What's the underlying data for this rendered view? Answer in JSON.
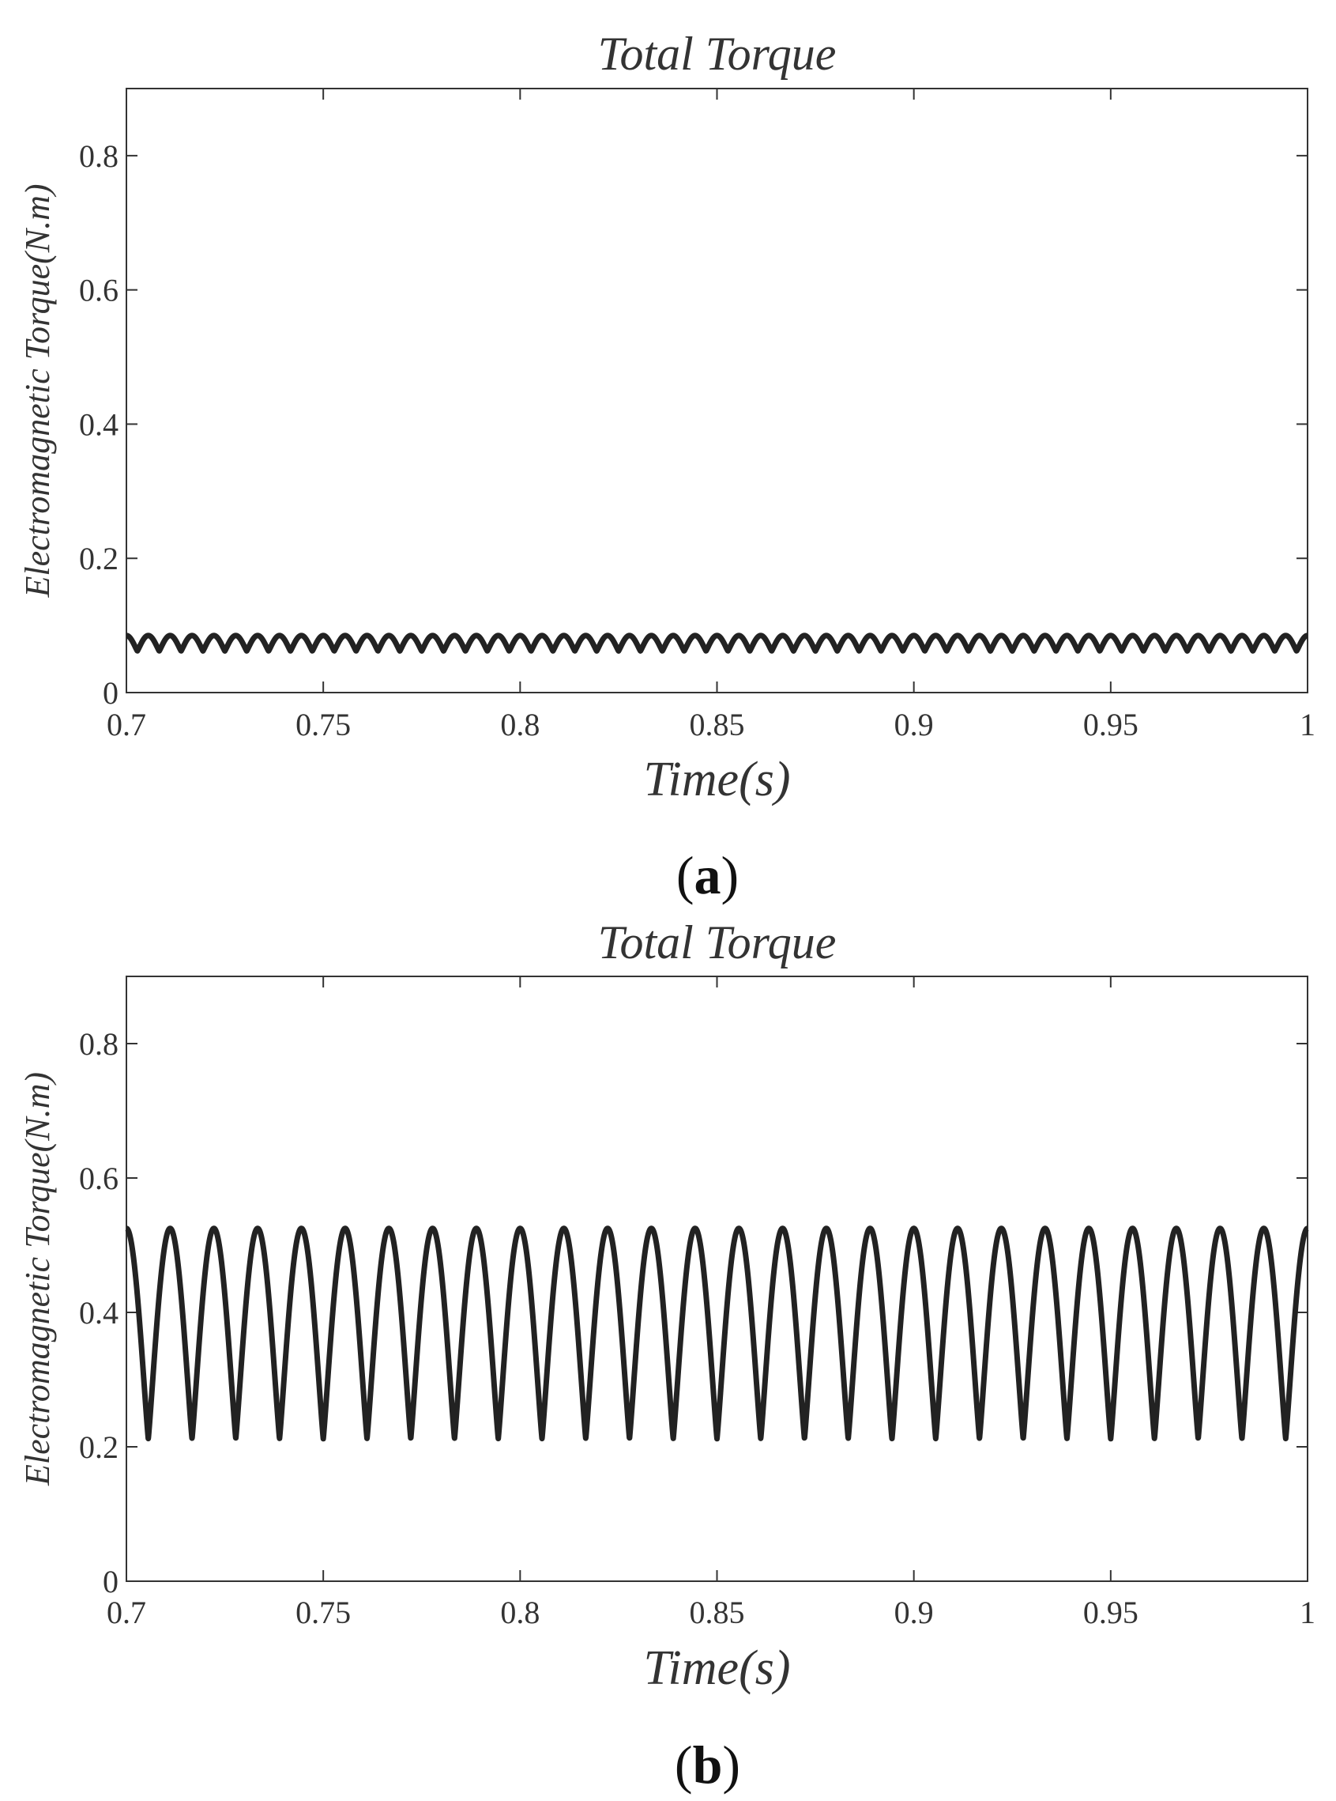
{
  "chart_data": [
    {
      "type": "line",
      "caption": "(a)",
      "title": "Total Torque",
      "xlabel": "Time(s)",
      "ylabel": "Electromagnetic Torque(N.m)",
      "xlim": [
        0.7,
        1.0
      ],
      "ylim": [
        0,
        0.9
      ],
      "xticks": [
        0.7,
        0.75,
        0.8,
        0.85,
        0.9,
        0.95,
        1.0
      ],
      "xtick_labels": [
        "0.7",
        "0.75",
        "0.8",
        "0.85",
        "0.9",
        "0.95",
        "1"
      ],
      "yticks": [
        0,
        0.2,
        0.4,
        0.6,
        0.8
      ],
      "ytick_labels": [
        "0",
        "0.2",
        "0.4",
        "0.6",
        "0.8"
      ],
      "grid": false,
      "series": [
        {
          "color": "#222222",
          "waveform": "periodic",
          "min": 0.062,
          "max": 0.085,
          "cycles": 54,
          "start_phase": "peak"
        }
      ]
    },
    {
      "type": "line",
      "caption": "(b)",
      "title": "Total Torque",
      "xlabel": "Time(s)",
      "ylabel": "Electromagnetic Torque(N.m)",
      "xlim": [
        0.7,
        1.0
      ],
      "ylim": [
        0,
        0.9
      ],
      "xticks": [
        0.7,
        0.75,
        0.8,
        0.85,
        0.9,
        0.95,
        1.0
      ],
      "xtick_labels": [
        "0.7",
        "0.75",
        "0.8",
        "0.85",
        "0.9",
        "0.95",
        "1"
      ],
      "yticks": [
        0,
        0.2,
        0.4,
        0.6,
        0.8
      ],
      "ytick_labels": [
        "0",
        "0.2",
        "0.4",
        "0.6",
        "0.8"
      ],
      "grid": false,
      "series": [
        {
          "color": "#222222",
          "waveform": "periodic",
          "min": 0.212,
          "max": 0.525,
          "cycles": 27,
          "start_phase": "peak"
        }
      ]
    }
  ]
}
